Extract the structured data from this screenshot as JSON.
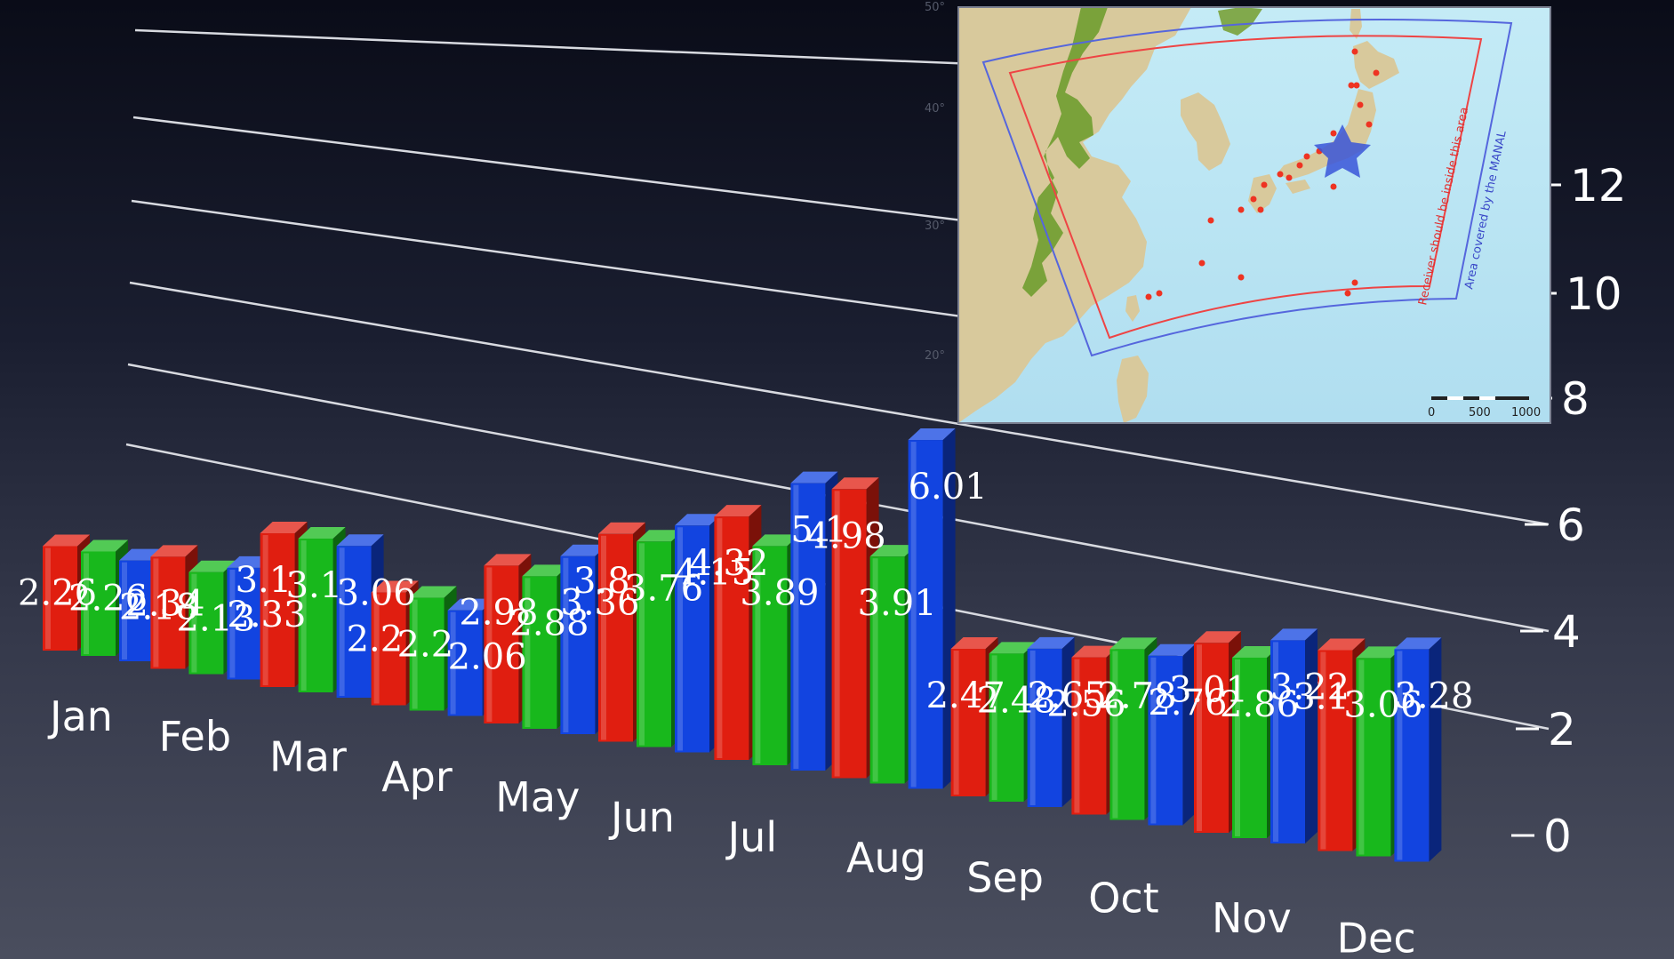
{
  "chart_data": {
    "type": "bar",
    "categories": [
      "Jan",
      "Feb",
      "Mar",
      "Apr",
      "May",
      "Jun",
      "Jul",
      "Aug",
      "Sep",
      "Oct",
      "Nov",
      "Dec"
    ],
    "series": [
      {
        "values": [
          2.26,
          2.34,
          3.1,
          2.2,
          2.98,
          3.8,
          4.32,
          4.98,
          2.47,
          2.56,
          3.01,
          3.1
        ],
        "color": "#e01e10"
      },
      {
        "values": [
          2.26,
          2.13,
          3.1,
          2.2,
          2.88,
          3.76,
          3.89,
          3.91,
          2.48,
          2.78,
          2.86,
          3.06
        ],
        "color": "#18b81c"
      },
      {
        "values": [
          2.18,
          2.33,
          3.06,
          2.06,
          3.36,
          4.15,
          5.1,
          6.01,
          2.65,
          2.76,
          3.22,
          3.28
        ],
        "color": "#1244e0"
      }
    ],
    "y_ticks": [
      "0",
      "2",
      "4",
      "6",
      "8",
      "10",
      "12"
    ],
    "ylim": [
      0,
      12
    ],
    "grid": true,
    "style": "3d"
  },
  "inset_map": {
    "inner_label": "Receiver should be inside this area",
    "outer_label": "Area covered by the MANAL",
    "scale_labels": [
      "0",
      "500",
      "1000"
    ],
    "lat_labels": [
      "50°",
      "40°",
      "30°",
      "20°"
    ],
    "colors": {
      "sea": "#bde6f2",
      "land": "#d8c99c",
      "forest": "#7aa23a",
      "inner_box": "#ee4444",
      "outer_box": "#5566dd",
      "star": "#3a55d8"
    }
  }
}
